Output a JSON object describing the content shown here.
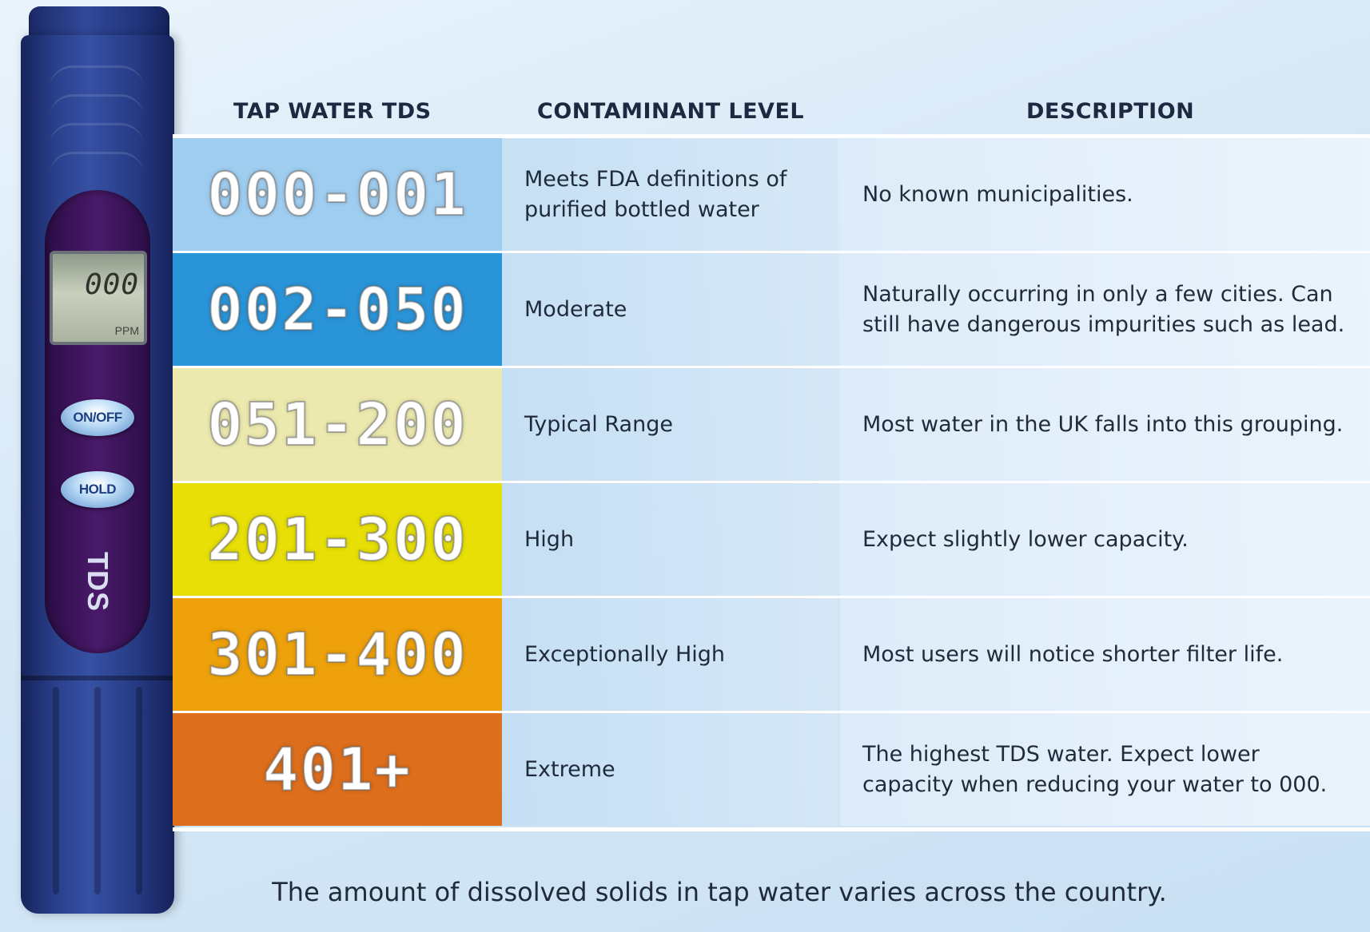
{
  "meter": {
    "display_value": "000",
    "display_unit": "PPM",
    "button_power": "ON/OFF",
    "button_hold": "HOLD",
    "label": "TDS"
  },
  "headers": {
    "tds": "TAP WATER TDS",
    "level": "CONTAMINANT LEVEL",
    "description": "DESCRIPTION"
  },
  "rows": [
    {
      "tds": "000-001",
      "color": "#9fcdf0",
      "level": "Meets FDA definitions of purified bottled water",
      "description": "No known municipalities."
    },
    {
      "tds": "002-050",
      "color": "#2a94d8",
      "level": "Moderate",
      "description": "Naturally occurring in only a few cities. Can still have dangerous impurities such as lead."
    },
    {
      "tds": "051-200",
      "color": "#ece9ae",
      "level": "Typical Range",
      "description": "Most water in the UK falls into this grouping."
    },
    {
      "tds": "201-300",
      "color": "#e7df05",
      "level": "High",
      "description": "Expect slightly lower capacity."
    },
    {
      "tds": "301-400",
      "color": "#eea10a",
      "level": "Exceptionally High",
      "description": "Most users will notice shorter filter life."
    },
    {
      "tds": "401+",
      "color": "#dd6e1c",
      "level": "Extreme",
      "description": "The highest TDS water. Expect lower capacity when reducing your water to 000."
    }
  ],
  "footer": "The amount of dissolved solids in tap water varies across the country."
}
